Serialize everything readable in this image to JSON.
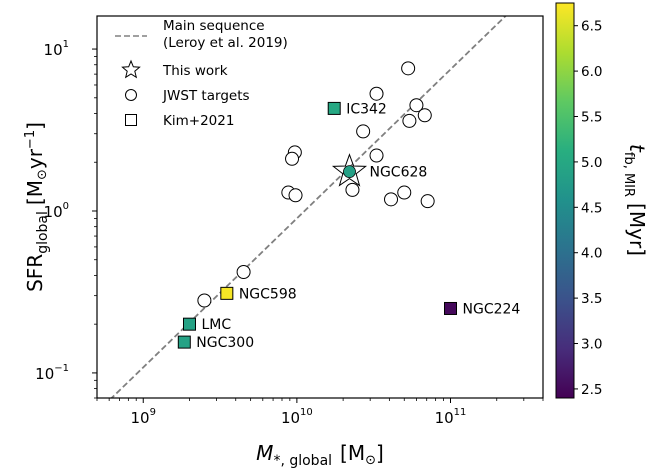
{
  "chart_data": {
    "type": "scatter",
    "xscale": "log",
    "yscale": "log",
    "xlim": [
      500000000.0,
      400000000000.0
    ],
    "ylim": [
      0.07,
      16
    ],
    "x_ticks": [
      {
        "value": 1000000000.0,
        "base": "10",
        "exp": "9"
      },
      {
        "value": 10000000000.0,
        "base": "10",
        "exp": "10"
      },
      {
        "value": 100000000000.0,
        "base": "10",
        "exp": "11"
      }
    ],
    "y_ticks": [
      {
        "value": 0.1,
        "base": "10",
        "exp": "−1"
      },
      {
        "value": 1,
        "base": "10",
        "exp": "0"
      },
      {
        "value": 10,
        "base": "10",
        "exp": "1"
      }
    ],
    "xlabel": {
      "main": "M",
      "sub": "*, global",
      "unit": "[M",
      "unit_sub": "⊙",
      "unit_end": "]"
    },
    "ylabel": {
      "main": "SFR",
      "sub": "global",
      "unit": "[M",
      "unit_sub": "⊙",
      "unit_mid": "yr",
      "unit_sup": "−1",
      "unit_end": "]"
    },
    "main_sequence": {
      "label_line1": "Main sequence",
      "label_line2": "(Leroy et al. 2019)",
      "slope": 0.92,
      "intercept_x": 10000000000.0,
      "intercept_y": 0.9,
      "color": "#808080"
    },
    "jwst_targets": [
      {
        "x": 53000000000.0,
        "y": 7.6
      },
      {
        "x": 33000000000.0,
        "y": 5.3
      },
      {
        "x": 60000000000.0,
        "y": 4.5
      },
      {
        "x": 68000000000.0,
        "y": 3.9
      },
      {
        "x": 54000000000.0,
        "y": 3.6
      },
      {
        "x": 27000000000.0,
        "y": 3.1
      },
      {
        "x": 9700000000.0,
        "y": 2.3
      },
      {
        "x": 9300000000.0,
        "y": 2.1
      },
      {
        "x": 33000000000.0,
        "y": 2.2
      },
      {
        "x": 23000000000.0,
        "y": 1.35
      },
      {
        "x": 8800000000.0,
        "y": 1.3
      },
      {
        "x": 9800000000.0,
        "y": 1.25
      },
      {
        "x": 50000000000.0,
        "y": 1.3
      },
      {
        "x": 41000000000.0,
        "y": 1.18
      },
      {
        "x": 71000000000.0,
        "y": 1.15
      },
      {
        "x": 4500000000.0,
        "y": 0.42
      },
      {
        "x": 2500000000.0,
        "y": 0.28
      }
    ],
    "kim2021": [
      {
        "name": "IC342",
        "x": 17500000000.0,
        "y": 4.3,
        "t_fb": 5.0
      },
      {
        "name": "NGC598",
        "x": 3500000000.0,
        "y": 0.31,
        "t_fb": 6.7
      },
      {
        "name": "LMC",
        "x": 2000000000.0,
        "y": 0.2,
        "t_fb": 4.9
      },
      {
        "name": "NGC300",
        "x": 1850000000.0,
        "y": 0.155,
        "t_fb": 4.9
      },
      {
        "name": "NGC224",
        "x": 100000000000.0,
        "y": 0.25,
        "t_fb": 2.5
      }
    ],
    "this_work": {
      "name": "NGC628",
      "x": 22000000000.0,
      "y": 1.75,
      "t_fb": 4.85
    },
    "colorbar": {
      "label": "t",
      "label_sub": "fb, MIR",
      "label_unit": "[Myr]",
      "min": 2.4,
      "max": 6.75,
      "ticks": [
        "2.5",
        "3.0",
        "3.5",
        "4.0",
        "4.5",
        "5.0",
        "5.5",
        "6.0",
        "6.5"
      ],
      "colormap": "viridis"
    },
    "legend": {
      "placement": "upper-left",
      "entries": [
        {
          "marker": "dashed-line",
          "label": "main_sequence"
        },
        {
          "marker": "star",
          "label": "This work"
        },
        {
          "marker": "circle",
          "label": "JWST targets"
        },
        {
          "marker": "square",
          "label": "Kim+2021"
        }
      ]
    }
  }
}
